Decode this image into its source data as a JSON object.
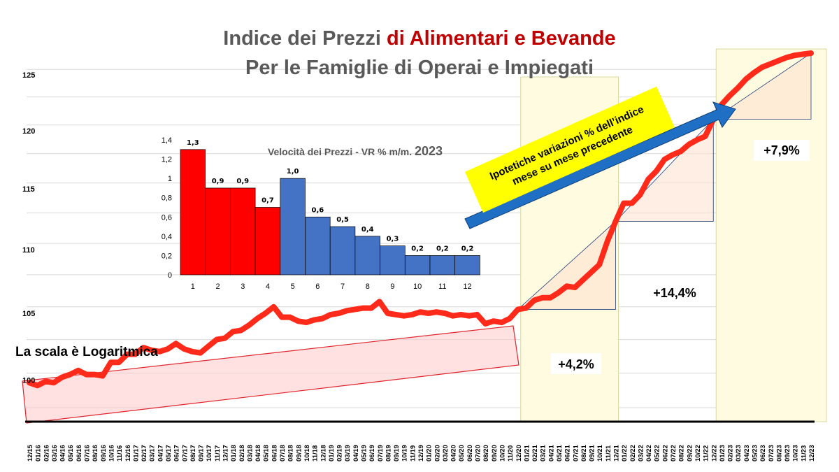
{
  "title": {
    "line1_gray": "Indice dei  Prezzi ",
    "line1_red": "di Alimentari e Bevande",
    "line2": "Per le  Famiglie di Operai e Impiegati"
  },
  "scale_note": "La scala è Logaritmica",
  "arrow_label": {
    "line1": "Ipotetiche variazioni % dell’indice",
    "line2": "mese su mese precedente"
  },
  "change_labels": [
    "+4,2%",
    "+14,4%",
    "+7,9%"
  ],
  "colors": {
    "main_line": "#ff2a1a",
    "title_gray": "#595959",
    "title_red": "#c00000",
    "bar_red": "#ff0000",
    "bar_blue": "#4472c4",
    "highlight": "#fffbe0",
    "arrow": "#1f6fc5",
    "note_box": "#ffff00"
  },
  "chart_data": [
    {
      "type": "line",
      "y_scale": "log",
      "ylim": [
        97,
        127
      ],
      "yticks": [
        100,
        105,
        110,
        115,
        120,
        125
      ],
      "grid": true,
      "x": [
        "12/15",
        "01/16",
        "02/16",
        "03/16",
        "04/16",
        "05/16",
        "06/16",
        "07/16",
        "08/16",
        "09/16",
        "10/16",
        "11/16",
        "12/16",
        "01/17",
        "02/17",
        "03/17",
        "04/17",
        "05/17",
        "06/17",
        "07/17",
        "08/17",
        "09/17",
        "10/17",
        "11/17",
        "12/17",
        "01/18",
        "02/18",
        "03/18",
        "04/18",
        "05/18",
        "06/18",
        "07/18",
        "08/18",
        "09/18",
        "10/18",
        "11/18",
        "12/18",
        "01/19",
        "02/19",
        "03/19",
        "04/19",
        "05/19",
        "06/19",
        "07/19",
        "08/19",
        "09/19",
        "10/19",
        "11/19",
        "12/19",
        "01/20",
        "02/20",
        "03/20",
        "04/20",
        "05/20",
        "06/20",
        "07/20",
        "08/20",
        "09/20",
        "10/20",
        "11/20",
        "12/20",
        "01/21",
        "02/21",
        "03/21",
        "04/21",
        "05/21",
        "06/21",
        "07/21",
        "08/21",
        "09/21",
        "10/21",
        "11/21",
        "12/21",
        "01/22",
        "02/22",
        "03/22",
        "04/22",
        "05/22",
        "06/22",
        "07/22",
        "08/22",
        "09/22",
        "10/22",
        "11/22",
        "12/22",
        "01/23",
        "02/23",
        "03/23",
        "04/23",
        "05/23",
        "06/23",
        "07/23",
        "08/23",
        "09/23",
        "10/23",
        "11/23",
        "12/23"
      ],
      "series": [
        {
          "values": [
            99.8,
            99.6,
            99.9,
            99.8,
            100.2,
            100.4,
            100.7,
            100.4,
            100.4,
            100.3,
            101.3,
            101.3,
            101.9,
            101.9,
            102.4,
            102.2,
            102.1,
            102.3,
            102.7,
            102.3,
            102.1,
            102.0,
            102.5,
            103.0,
            103.1,
            103.6,
            103.7,
            104.1,
            104.6,
            105.0,
            105.5,
            104.7,
            104.7,
            104.4,
            104.3,
            104.5,
            104.6,
            104.9,
            105.0,
            105.2,
            105.3,
            105.4,
            105.4,
            105.9,
            105.0,
            104.9,
            104.8,
            104.9,
            105.1,
            105.0,
            105.1,
            105.0,
            104.8,
            104.9,
            104.8,
            104.9,
            104.2,
            104.4,
            104.3,
            104.6,
            105.3,
            105.4,
            106.0,
            106.2,
            106.2,
            106.6,
            107.1,
            107.0,
            107.6,
            108.2,
            108.8,
            110.7,
            112.3,
            113.8,
            113.8,
            114.5,
            115.8,
            116.5,
            117.5,
            117.9,
            118.2,
            118.8,
            119.2,
            119.5,
            121.0,
            122.3,
            123.1,
            123.8,
            124.6,
            125.2,
            125.7,
            126.0,
            126.3,
            126.6,
            126.8,
            126.9,
            127.0
          ],
          "color": "#ff2a1a"
        }
      ]
    },
    {
      "type": "bar",
      "title": "Velocità dei Prezzi - VR % m/m. 2023",
      "categories": [
        "1",
        "2",
        "3",
        "4",
        "5",
        "6",
        "7",
        "8",
        "9",
        "10",
        "11",
        "12"
      ],
      "values": [
        1.3,
        0.9,
        0.9,
        0.7,
        1.0,
        0.6,
        0.5,
        0.4,
        0.3,
        0.2,
        0.2,
        0.2
      ],
      "value_labels": [
        "1,3",
        "0,9",
        "0,9",
        "0,7",
        "1,0",
        "0,6",
        "0,5",
        "0,4",
        "0,3",
        "0,2",
        "0,2",
        "0,2"
      ],
      "yticks": [
        0,
        0.2,
        0.4,
        0.6,
        0.8,
        1,
        1.2,
        1.4
      ],
      "ytick_labels": [
        "0",
        "0,2",
        "0,4",
        "0,6",
        "0,8",
        "1",
        "1,2",
        "1,4"
      ],
      "ylim": [
        0,
        1.4
      ],
      "colors": [
        "#ff0000",
        "#ff0000",
        "#ff0000",
        "#ff0000",
        "#4472c4",
        "#4472c4",
        "#4472c4",
        "#4472c4",
        "#4472c4",
        "#4472c4",
        "#4472c4",
        "#4472c4"
      ]
    }
  ]
}
